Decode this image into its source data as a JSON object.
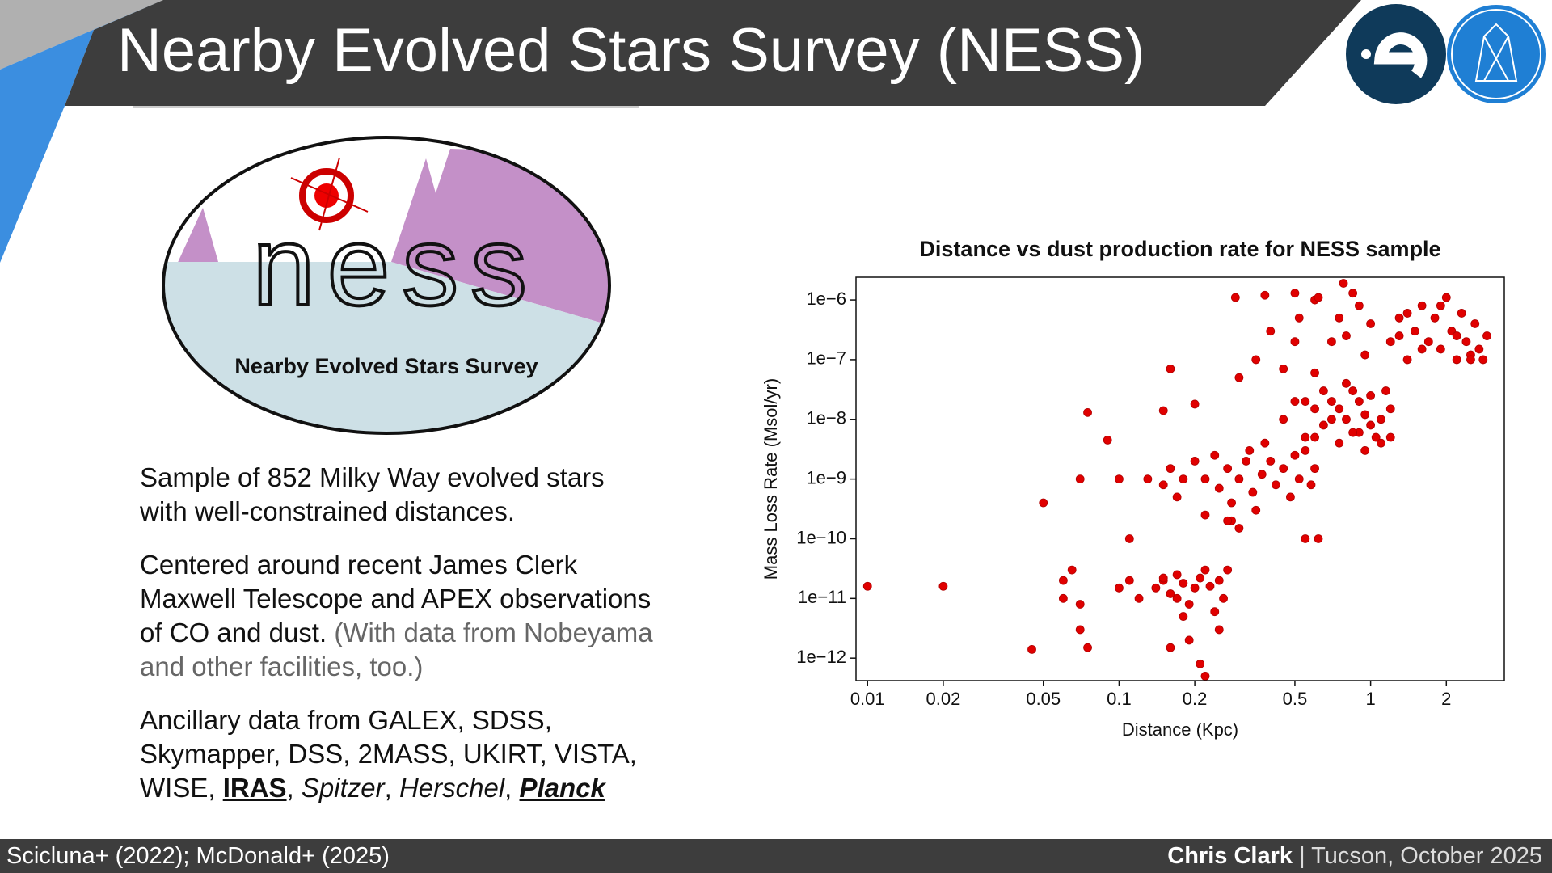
{
  "title": "Nearby Evolved Stars Survey (NESS)",
  "logo": {
    "wordmark": "ness",
    "caption": "Nearby Evolved Stars Survey"
  },
  "paragraphs": [
    [
      {
        "text": "Sample of 852 Milky Way evolved stars with well-constrained distances.",
        "style": "normal"
      }
    ],
    [
      {
        "text": "Centered around recent James Clerk Maxwell Telescope and APEX observations of CO and dust. ",
        "style": "normal"
      },
      {
        "text": "(With data from Nobeyama and other facilities, too.)",
        "style": "light"
      }
    ],
    [
      {
        "text": "Ancillary data from GALEX, SDSS, Skymapper, DSS, 2MASS, UKIRT, VISTA, WISE, ",
        "style": "normal"
      },
      {
        "text": "IRAS",
        "style": "bold-underline"
      },
      {
        "text": ", ",
        "style": "normal"
      },
      {
        "text": "Spitzer",
        "style": "italic"
      },
      {
        "text": ", ",
        "style": "normal"
      },
      {
        "text": "Herschel",
        "style": "italic"
      },
      {
        "text": ", ",
        "style": "normal"
      },
      {
        "text": "Planck",
        "style": "bold-italic-underline"
      }
    ]
  ],
  "footer": {
    "left": "Scicluna+ (2022); McDonald+ (2025)",
    "author": "Chris Clark",
    "location": "| Tucson, October 2025"
  },
  "chart_data": {
    "type": "scatter",
    "title": "Distance vs dust production rate for NESS sample",
    "xlabel": "Distance (Kpc)",
    "ylabel": "Mass Loss Rate (Msol/yr)",
    "xscale": "log",
    "yscale": "log",
    "color": "#e00000",
    "xlim": [
      0.009,
      3.4
    ],
    "ylim": [
      4.2e-13,
      2.4e-06
    ],
    "xticks": [
      0.01,
      0.02,
      0.05,
      0.1,
      0.2,
      0.5,
      1,
      2
    ],
    "yticks": [
      {
        "value": 1e-06,
        "label": "1e−6"
      },
      {
        "value": 1e-07,
        "label": "1e−7"
      },
      {
        "value": 1e-08,
        "label": "1e−8"
      },
      {
        "value": 1e-09,
        "label": "1e−9"
      },
      {
        "value": 1e-10,
        "label": "1e−10"
      },
      {
        "value": 1e-11,
        "label": "1e−11"
      },
      {
        "value": 1e-12,
        "label": "1e−12"
      }
    ],
    "x": [
      0.01,
      0.02,
      0.045,
      0.05,
      0.07,
      0.075,
      0.07,
      0.075,
      0.065,
      0.06,
      0.06,
      0.07,
      0.09,
      0.1,
      0.11,
      0.11,
      0.12,
      0.1,
      0.16,
      0.15,
      0.2,
      0.14,
      0.15,
      0.16,
      0.17,
      0.18,
      0.19,
      0.2,
      0.21,
      0.22,
      0.23,
      0.25,
      0.26,
      0.24,
      0.18,
      0.16,
      0.19,
      0.21,
      0.22,
      0.25,
      0.27,
      0.28,
      0.15,
      0.17,
      0.13,
      0.15,
      0.16,
      0.17,
      0.18,
      0.2,
      0.22,
      0.24,
      0.25,
      0.27,
      0.28,
      0.3,
      0.32,
      0.34,
      0.35,
      0.37,
      0.4,
      0.42,
      0.45,
      0.48,
      0.5,
      0.52,
      0.55,
      0.58,
      0.6,
      0.3,
      0.27,
      0.55,
      0.62,
      0.22,
      0.38,
      0.33,
      0.45,
      0.5,
      0.55,
      0.6,
      0.65,
      0.7,
      0.75,
      0.8,
      0.85,
      0.9,
      0.95,
      1,
      1.05,
      1.1,
      1.15,
      1.2,
      1.1,
      0.9,
      0.7,
      0.6,
      0.8,
      1,
      0.95,
      1.2,
      0.65,
      0.75,
      0.55,
      0.85,
      0.35,
      0.4,
      0.5,
      0.52,
      0.6,
      0.62,
      0.7,
      0.75,
      0.8,
      0.9,
      0.95,
      1,
      0.3,
      0.45,
      0.6,
      0.85,
      0.78,
      0.29,
      0.38,
      0.5,
      1.2,
      1.3,
      1.4,
      1.5,
      1.6,
      1.7,
      1.8,
      1.9,
      2,
      2.1,
      2.2,
      2.3,
      2.4,
      2.5,
      2.6,
      2.7,
      2.9,
      1.4,
      1.6,
      1.9,
      2.2,
      2.5,
      2.8,
      1.3
    ],
    "y": [
      1.6e-11,
      1.6e-11,
      1.4e-12,
      4e-10,
      1e-09,
      1.3e-08,
      3e-12,
      1.5e-12,
      3e-11,
      2e-11,
      1e-11,
      8e-12,
      4.5e-09,
      1e-09,
      1e-10,
      2e-11,
      1e-11,
      1.5e-11,
      7e-08,
      1.4e-08,
      1.8e-08,
      1.5e-11,
      2e-11,
      1.2e-11,
      2.5e-11,
      1.8e-11,
      8e-12,
      1.5e-11,
      2.2e-11,
      3e-11,
      1.6e-11,
      2e-11,
      1e-11,
      6e-12,
      5e-12,
      1.5e-12,
      2e-12,
      8e-13,
      5e-13,
      3e-12,
      3e-11,
      2e-10,
      2.2e-11,
      1e-11,
      1e-09,
      8e-10,
      1.5e-09,
      5e-10,
      1e-09,
      2e-09,
      1e-09,
      2.5e-09,
      7e-10,
      1.5e-09,
      4e-10,
      1e-09,
      2e-09,
      6e-10,
      3e-10,
      1.2e-09,
      2e-09,
      8e-10,
      1.5e-09,
      5e-10,
      2.5e-09,
      1e-09,
      3e-09,
      8e-10,
      1.5e-09,
      1.5e-10,
      2e-10,
      1e-10,
      1e-10,
      2.5e-10,
      4e-09,
      3e-09,
      1e-08,
      2e-08,
      5e-09,
      1.5e-08,
      8e-09,
      2e-08,
      4e-09,
      1e-08,
      3e-08,
      6e-09,
      1.2e-08,
      2.5e-08,
      5e-09,
      1e-08,
      3e-08,
      1.5e-08,
      4e-09,
      2e-08,
      1e-08,
      5e-09,
      4e-08,
      8e-09,
      3e-09,
      5e-09,
      3e-08,
      1.5e-08,
      2e-08,
      6e-09,
      1e-07,
      3e-07,
      2e-07,
      5e-07,
      1e-06,
      1.1e-06,
      2e-07,
      5e-07,
      2.5e-07,
      8e-07,
      1.2e-07,
      4e-07,
      5e-08,
      7e-08,
      6e-08,
      1.3e-06,
      1.9e-06,
      1.1e-06,
      1.2e-06,
      1.3e-06,
      2e-07,
      5e-07,
      1e-07,
      3e-07,
      8e-07,
      2e-07,
      5e-07,
      1.5e-07,
      1.1e-06,
      3e-07,
      1e-07,
      6e-07,
      2e-07,
      1.2e-07,
      4e-07,
      1.5e-07,
      2.5e-07,
      6e-07,
      1.5e-07,
      8e-07,
      2.5e-07,
      1e-07,
      1e-07,
      2.5e-07
    ]
  }
}
